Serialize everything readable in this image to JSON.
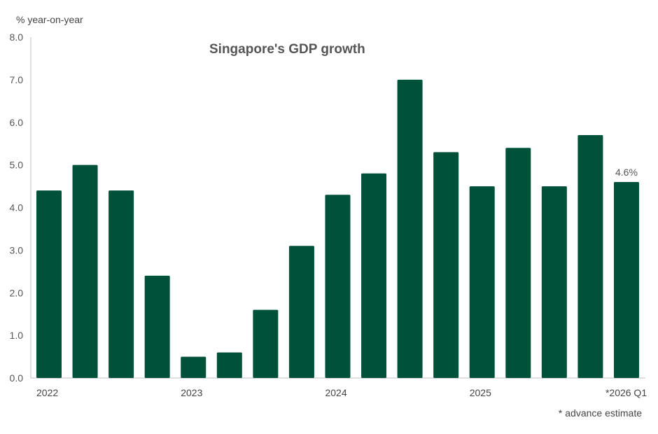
{
  "chart_data": {
    "type": "bar",
    "title": "Singapore's GDP growth",
    "ylabel": "% year-on-year",
    "xlabel": "",
    "ylim": [
      0,
      8
    ],
    "yticks": [
      "0.0",
      "1.0",
      "2.0",
      "3.0",
      "4.0",
      "5.0",
      "6.0",
      "7.0",
      "8.0"
    ],
    "categories": [
      "2022 Q1",
      "2022 Q2",
      "2022 Q3",
      "2022 Q4",
      "2023 Q1",
      "2023 Q2",
      "2023 Q3",
      "2023 Q4",
      "2024 Q1",
      "2024 Q2",
      "2024 Q3",
      "2024 Q4",
      "2025 Q1",
      "2025 Q2",
      "2025 Q3",
      "2025 Q4",
      "2026 Q1"
    ],
    "xtick_labels": [
      {
        "index": 0,
        "label": "2022"
      },
      {
        "index": 4,
        "label": "2023"
      },
      {
        "index": 8,
        "label": "2024"
      },
      {
        "index": 12,
        "label": "2025"
      },
      {
        "index": 16,
        "label": "*2026 Q1"
      }
    ],
    "values": [
      4.4,
      5.0,
      4.4,
      2.4,
      0.5,
      0.6,
      1.6,
      3.1,
      4.3,
      4.8,
      7.0,
      5.3,
      4.5,
      5.4,
      4.5,
      5.7,
      4.6
    ],
    "data_labels": [
      {
        "index": 16,
        "label": "4.6%"
      }
    ],
    "footnote": "* advance estimate",
    "grid": false,
    "colors": {
      "bar": "#00513A",
      "text": "#444444",
      "axis": "#BFBFBF"
    }
  }
}
